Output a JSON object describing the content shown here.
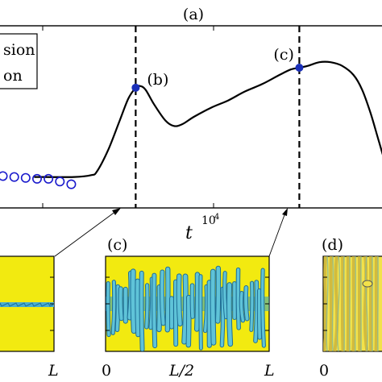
{
  "chart_data": {
    "type": "line",
    "panel_label_top": "(a)",
    "xlabel": "t",
    "x_exponent": "10",
    "x_exponent_power": "4",
    "legend_partial": [
      "sion",
      "on"
    ],
    "legend_placement": "top-left",
    "series": [
      {
        "name": "",
        "style": "solid-black",
        "x": [
          0.0,
          0.7,
          1.0,
          1.1,
          1.3,
          1.5,
          1.65,
          1.78,
          1.85,
          1.95,
          2.1,
          2.3,
          2.45,
          2.6,
          2.8,
          3.1,
          3.4,
          3.7,
          4.0,
          4.3,
          4.5,
          4.65,
          4.8,
          5.0,
          5.2,
          5.4,
          5.6,
          5.75,
          5.9,
          6.05,
          6.2
        ],
        "y": [
          0.17,
          0.17,
          0.18,
          0.2,
          0.32,
          0.48,
          0.6,
          0.66,
          0.67,
          0.65,
          0.57,
          0.48,
          0.45,
          0.46,
          0.5,
          0.55,
          0.59,
          0.64,
          0.68,
          0.73,
          0.76,
          0.77,
          0.78,
          0.8,
          0.8,
          0.78,
          0.73,
          0.65,
          0.52,
          0.36,
          0.2
        ]
      },
      {
        "name": "",
        "style": "open-circles-blue",
        "x": [
          -0.55,
          -0.35,
          -0.15,
          0.05,
          0.25,
          0.45,
          0.65
        ],
        "y": [
          0.175,
          0.17,
          0.165,
          0.16,
          0.16,
          0.145,
          0.13
        ]
      }
    ],
    "markers": [
      {
        "label": "(b)",
        "x": 1.78,
        "y": 0.66
      },
      {
        "label": "(c)",
        "x": 4.65,
        "y": 0.77
      }
    ],
    "vlines_x": [
      1.78,
      4.65
    ],
    "xlim": [
      -0.6,
      6.1
    ],
    "ylim": [
      0.0,
      1.0
    ],
    "insets": [
      {
        "label": "",
        "ticks": [
          "L"
        ],
        "pattern": "thin-band"
      },
      {
        "label": "(c)",
        "ticks": [
          "0",
          "L/2",
          "L"
        ],
        "pattern": "fingers"
      },
      {
        "label": "(d)",
        "ticks": [
          "0"
        ],
        "pattern": "turbulent"
      }
    ],
    "colors": {
      "line": "#000000",
      "circles": "#1a1acc",
      "marker": "#1a2fb8",
      "inset_bg": "#f2ea10",
      "pattern": "#2f9fc4"
    }
  }
}
